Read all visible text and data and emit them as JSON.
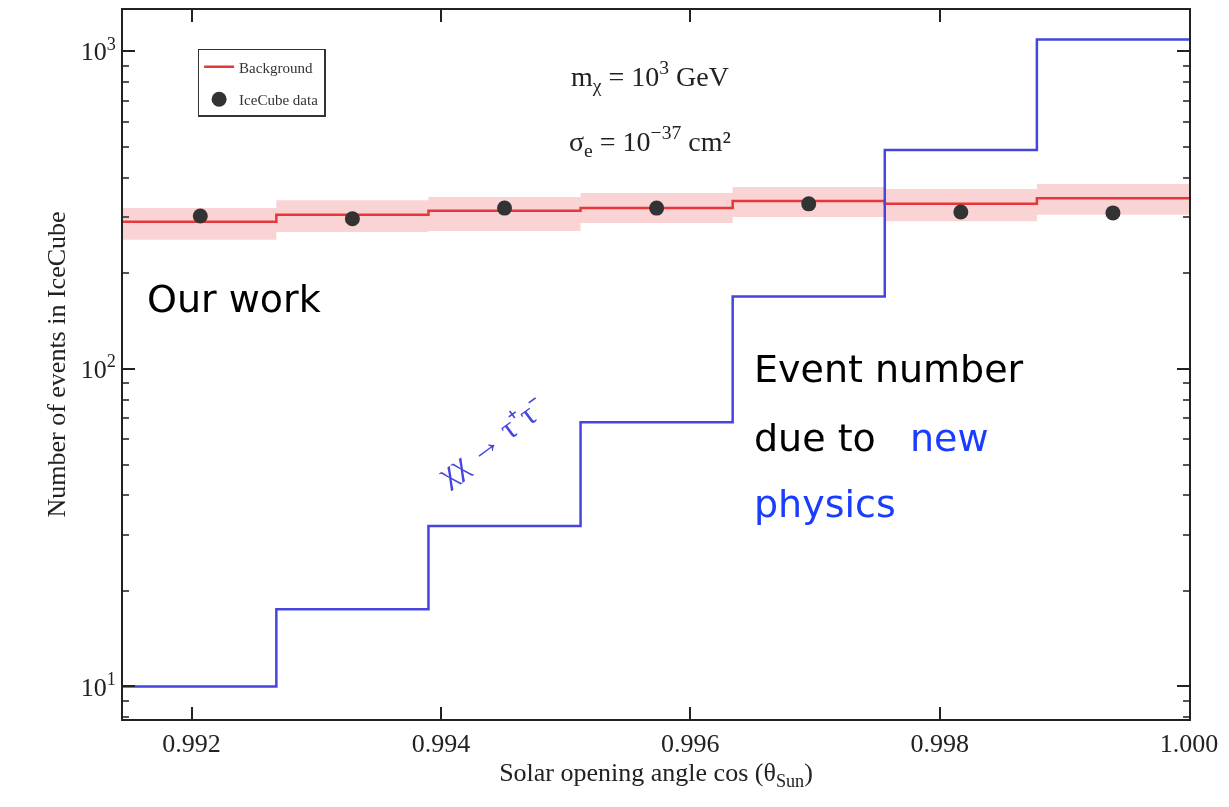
{
  "chart_data": {
    "type": "step",
    "xlabel": "Solar opening angle cos (θ$_{Sun}$)",
    "ylabel": "Number of events in IceCube",
    "series": [
      {
        "name": "Background",
        "color": "#e8373a",
        "x": [
          0.99145,
          0.99268,
          0.9939,
          0.99512,
          0.99634,
          0.99756,
          0.99878,
          1.0
        ],
        "values": [
          291,
          306,
          315,
          321,
          338,
          331,
          345,
          345
        ],
        "lower": [
          255,
          270,
          272,
          288,
          301,
          292,
          306,
          306
        ],
        "upper": [
          321,
          340,
          348,
          358,
          374,
          369,
          382,
          382
        ]
      },
      {
        "name": "IceCube data",
        "type": "scatter",
        "color": "#333333",
        "marker": "circle",
        "x": [
          0.99207,
          0.99329,
          0.99451,
          0.99573,
          0.99695,
          0.99817,
          0.99939
        ],
        "values": [
          303,
          297,
          321,
          321,
          331,
          312,
          310
        ]
      },
      {
        "name": "χχ → τ⁺τ⁻",
        "color": "#4646dc",
        "x": [
          0.99145,
          0.99268,
          0.9939,
          0.99512,
          0.99634,
          0.99756,
          0.99878,
          1.0
        ],
        "values": [
          10,
          17.5,
          32,
          68,
          169,
          489,
          1090,
          1090
        ]
      }
    ],
    "annotations": [
      "m$_{χ}$ = 10$^{3}$ GeV",
      "σ$_{e}$ = 10$^{−37}$ cm²",
      "Our work",
      "Event number",
      "due to",
      "new",
      "physics"
    ],
    "log": "y",
    "legend": "top left",
    "xlim": [
      0.99145,
      1.0
    ],
    "ylim": [
      7.9,
      1350
    ],
    "xticks": [
      0.992,
      0.994,
      0.996,
      0.998,
      {
        "value": 1.0,
        "label": "1.000"
      }
    ],
    "yticks": [
      {
        "value": 8,
        "label": null
      },
      {
        "value": 9,
        "label": null
      },
      {
        "value": 10,
        "label": "10$^{1}$"
      },
      {
        "value": 20,
        "label": null
      },
      {
        "value": 30,
        "label": null
      },
      {
        "value": 40,
        "label": null
      },
      {
        "value": 50,
        "label": null
      },
      {
        "value": 60,
        "label": null
      },
      {
        "value": 70,
        "label": null
      },
      {
        "value": 80,
        "label": null
      },
      {
        "value": 90,
        "label": null
      },
      {
        "value": 100,
        "label": "10$^{2}$"
      },
      {
        "value": 200,
        "label": null
      },
      {
        "value": 300,
        "label": null
      },
      {
        "value": 400,
        "label": null
      },
      {
        "value": 500,
        "label": null
      },
      {
        "value": 600,
        "label": null
      },
      {
        "value": 700,
        "label": null
      },
      {
        "value": 800,
        "label": null
      },
      {
        "value": 900,
        "label": null
      },
      {
        "value": 1000,
        "label": "10$^{3}$"
      }
    ]
  }
}
